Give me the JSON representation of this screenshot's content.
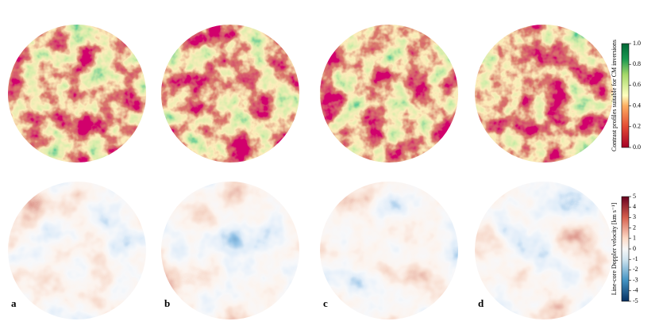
{
  "panel_labels": [
    "a",
    "b",
    "c",
    "d"
  ],
  "colorbars": [
    {
      "label": "Contrast profiles suitable for CM inversions",
      "lim": [
        0,
        1
      ],
      "ticks": [
        {
          "value": 0,
          "label": "0.0"
        },
        {
          "value": 0.2,
          "label": "0.2"
        },
        {
          "value": 0.4,
          "label": "0.4"
        },
        {
          "value": 0.6,
          "label": "0.6"
        },
        {
          "value": 0.8,
          "label": "0.8"
        },
        {
          "value": 1,
          "label": "1.0"
        }
      ]
    },
    {
      "label": "Line-core Doppler velocity  [km s⁻¹]",
      "lim": [
        -5,
        5
      ],
      "ticks": [
        -5,
        -4,
        -3,
        -2,
        -1,
        0,
        1,
        2,
        3,
        4,
        5
      ]
    }
  ]
}
